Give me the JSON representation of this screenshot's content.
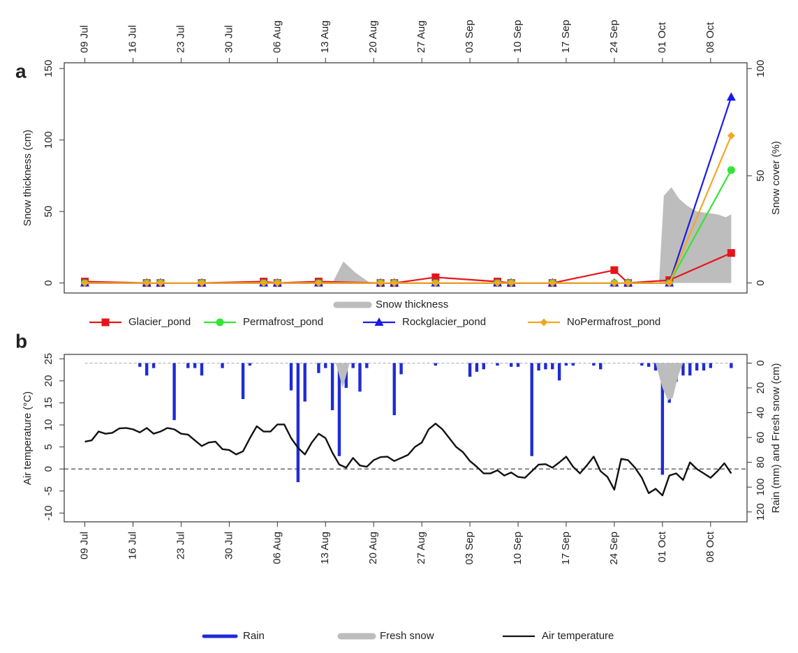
{
  "chart_data": [
    {
      "type": "line",
      "label": "a",
      "ylabel": "Snow thickness (cm)",
      "y2label": "Snow cover (%)",
      "xaxis_side": "top",
      "xlim": [
        -3,
        96.3
      ],
      "ylim": [
        -7,
        154
      ],
      "y2lim": [
        -4.7,
        102.7
      ],
      "xticks": [
        {
          "value": 0,
          "label": "09 Jul"
        },
        {
          "value": 7,
          "label": "16 Jul"
        },
        {
          "value": 14,
          "label": "23 Jul"
        },
        {
          "value": 21,
          "label": "30 Jul"
        },
        {
          "value": 28,
          "label": "06 Aug"
        },
        {
          "value": 35,
          "label": "13 Aug"
        },
        {
          "value": 42,
          "label": "20 Aug"
        },
        {
          "value": 49,
          "label": "27 Aug"
        },
        {
          "value": 56,
          "label": "03 Sep"
        },
        {
          "value": 63,
          "label": "10 Sep"
        },
        {
          "value": 70,
          "label": "17 Sep"
        },
        {
          "value": 77,
          "label": "24 Sep"
        },
        {
          "value": 84,
          "label": "01 Oct"
        },
        {
          "value": 91,
          "label": "08 Oct"
        }
      ],
      "yticks": [
        0,
        50,
        100,
        150
      ],
      "y2ticks": [
        0,
        50,
        100
      ],
      "x": [
        0,
        9,
        11,
        17,
        26,
        28,
        34,
        43,
        45,
        51,
        60,
        62,
        68,
        77,
        79,
        85,
        94
      ],
      "series": [
        {
          "name": "Snow thickness",
          "type": "area",
          "color": "#bdbdbd",
          "x": [
            36,
            37.6,
            39.4,
            41.5,
            83.5,
            84.2,
            85.3,
            86.4,
            87.6,
            89,
            90.5,
            92,
            93.2,
            94
          ],
          "values": [
            0,
            15,
            7,
            0,
            0,
            61,
            67,
            59,
            54,
            50,
            49,
            48,
            46,
            48
          ]
        },
        {
          "name": "Glacier_pond",
          "type": "line",
          "marker": "square",
          "color": "#e8141b",
          "values": [
            1,
            0,
            0,
            0,
            1,
            0,
            1,
            0,
            0,
            4,
            1,
            0,
            0,
            9,
            0,
            2,
            21
          ]
        },
        {
          "name": "Permafrost_pond",
          "type": "line",
          "marker": "circle",
          "color": "#33e633",
          "values": [
            0,
            0,
            0,
            0,
            0,
            0,
            0,
            0,
            0,
            0,
            0,
            0,
            0,
            0,
            0,
            0,
            79
          ]
        },
        {
          "name": "Rockglacier_pond",
          "type": "line",
          "marker": "triangle",
          "color": "#1a1ae6",
          "values": [
            0,
            0,
            0,
            0,
            0,
            0,
            0,
            0,
            0,
            0,
            0,
            0,
            0,
            0,
            0,
            0,
            130
          ]
        },
        {
          "name": "NoPermafrost_pond",
          "type": "line",
          "marker": "diamond",
          "color": "#f5a623",
          "values": [
            0,
            0,
            0,
            0,
            0,
            0,
            0,
            0,
            0,
            0,
            0,
            0,
            0,
            0,
            0,
            0,
            103
          ]
        }
      ]
    },
    {
      "type": "line",
      "label": "b",
      "ylabel": "Air temperature (°C)",
      "y2label": "Rain (mm) and Fresh snow (cm)",
      "xaxis_side": "bottom",
      "zero_line": true,
      "xlim": [
        -3,
        96.3
      ],
      "ylim": [
        -12,
        26
      ],
      "y2lim": [
        128,
        -7
      ],
      "xticks": [
        {
          "value": 0,
          "label": "09 Jul"
        },
        {
          "value": 7,
          "label": "16 Jul"
        },
        {
          "value": 14,
          "label": "23 Jul"
        },
        {
          "value": 21,
          "label": "30 Jul"
        },
        {
          "value": 28,
          "label": "06 Aug"
        },
        {
          "value": 35,
          "label": "13 Aug"
        },
        {
          "value": 42,
          "label": "20 Aug"
        },
        {
          "value": 49,
          "label": "27 Aug"
        },
        {
          "value": 56,
          "label": "03 Sep"
        },
        {
          "value": 63,
          "label": "10 Sep"
        },
        {
          "value": 70,
          "label": "17 Sep"
        },
        {
          "value": 77,
          "label": "24 Sep"
        },
        {
          "value": 84,
          "label": "01 Oct"
        },
        {
          "value": 91,
          "label": "08 Oct"
        }
      ],
      "yticks": [
        -10,
        -5,
        0,
        5,
        10,
        15,
        20,
        25
      ],
      "y2ticks": [
        0,
        20,
        40,
        60,
        80,
        100,
        120
      ],
      "x": [
        0,
        1,
        2,
        3,
        4,
        5,
        6,
        7,
        8,
        9,
        10,
        11,
        12,
        13,
        14,
        15,
        16,
        17,
        18,
        19,
        20,
        21,
        22,
        23,
        24,
        25,
        26,
        27,
        28,
        29,
        30,
        31,
        32,
        33,
        34,
        35,
        36,
        37,
        38,
        39,
        40,
        41,
        42,
        43,
        44,
        45,
        46,
        47,
        48,
        49,
        50,
        51,
        52,
        53,
        54,
        55,
        56,
        57,
        58,
        59,
        60,
        61,
        62,
        63,
        64,
        65,
        66,
        67,
        68,
        69,
        70,
        71,
        72,
        73,
        74,
        75,
        76,
        77,
        78,
        79,
        80,
        81,
        82,
        83,
        84,
        85,
        86,
        87,
        88,
        89,
        90,
        91,
        92,
        93,
        94
      ],
      "series": [
        {
          "name": "Rain",
          "type": "bar",
          "axis": "y2",
          "color": "#1f2bd6",
          "x": [
            8,
            9,
            10,
            13,
            15,
            16,
            17,
            20,
            23,
            24,
            30,
            31,
            32,
            34,
            35,
            36,
            37,
            38,
            39,
            40,
            41,
            45,
            46,
            51,
            56,
            57,
            58,
            60,
            62,
            63,
            65,
            66,
            67,
            68,
            69,
            70,
            71,
            74,
            75,
            81,
            82,
            83,
            84,
            85,
            86,
            87,
            88,
            89,
            90,
            91,
            94
          ],
          "values": [
            3,
            10,
            4,
            46,
            4,
            4,
            10,
            4,
            29,
            2,
            22,
            96,
            31,
            8,
            4,
            38,
            75,
            20,
            4,
            23,
            4,
            42,
            9,
            2,
            11,
            7,
            5,
            2,
            3,
            3,
            75,
            6,
            5,
            5,
            14,
            2,
            2,
            2,
            5,
            2,
            3,
            6,
            90,
            32,
            15,
            10,
            10,
            6,
            6,
            4,
            4
          ]
        },
        {
          "name": "Fresh snow",
          "type": "area",
          "axis": "y2",
          "color": "#bdbdbd",
          "x": [
            36.5,
            37.5,
            38.5,
            83,
            84,
            84.8,
            85.5,
            86.3,
            87
          ],
          "values": [
            0,
            20,
            0,
            0,
            20,
            30,
            28,
            10,
            0
          ]
        },
        {
          "name": "Air temperature",
          "type": "line",
          "color": "#111111",
          "values": [
            6.2,
            6.5,
            8.5,
            8.0,
            8.2,
            9.2,
            9.3,
            9.0,
            8.3,
            9.3,
            8.0,
            8.5,
            9.3,
            9.0,
            8.0,
            7.8,
            6.5,
            5.2,
            6.0,
            6.2,
            4.5,
            4.3,
            3.3,
            4.0,
            7.0,
            9.7,
            8.5,
            8.5,
            10.1,
            10.1,
            7.0,
            4.8,
            3.3,
            6.0,
            8.0,
            7.0,
            3.7,
            1.0,
            0.3,
            2.5,
            0.8,
            0.5,
            2.0,
            2.7,
            2.8,
            1.8,
            2.5,
            3.2,
            5.0,
            6.0,
            9.0,
            10.3,
            9.0,
            7.0,
            5.0,
            3.8,
            1.8,
            0.5,
            -1.0,
            -1.0,
            -0.3,
            -1.5,
            -0.8,
            -1.8,
            -2.0,
            -0.5,
            1.0,
            1.1,
            0.3,
            1.5,
            2.8,
            0.5,
            -1.0,
            0.8,
            2.8,
            -0.5,
            -1.8,
            -4.7,
            2.3,
            2.0,
            0.3,
            -2.0,
            -5.5,
            -4.5,
            -6.0,
            -1.5,
            -1.0,
            -2.5,
            1.5,
            0.0,
            -1.0,
            -2.0,
            -0.5,
            1.3,
            -1.0
          ]
        }
      ]
    }
  ]
}
